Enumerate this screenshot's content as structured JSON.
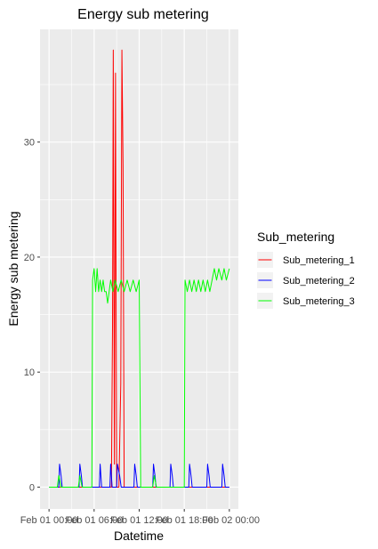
{
  "chart_data": {
    "type": "line",
    "title": "Energy sub metering",
    "xlabel": "Datetime",
    "ylabel": "Energy sub metering",
    "x_unit": "hours since Feb 01 00:00",
    "xlim": [
      -1.2,
      25.2
    ],
    "ylim": [
      -1.9,
      39.8
    ],
    "x_ticks": [
      0,
      6,
      12,
      18,
      24
    ],
    "x_tick_labels": [
      "Feb 01 00:00",
      "Feb 01 06:00",
      "Feb 01 12:00",
      "Feb 01 18:00",
      "Feb 02 00:00"
    ],
    "y_ticks": [
      0,
      10,
      20,
      30
    ],
    "y_tick_labels": [
      "0",
      "10",
      "20",
      "30"
    ],
    "grid": true,
    "legend": {
      "title": "Sub_metering",
      "position": "right"
    },
    "series": [
      {
        "name": "Sub_metering_1",
        "color": "#ff0000",
        "points": [
          [
            0,
            0
          ],
          [
            8.3,
            0
          ],
          [
            8.45,
            14
          ],
          [
            8.55,
            38
          ],
          [
            8.7,
            2
          ],
          [
            8.85,
            36
          ],
          [
            9.0,
            0
          ],
          [
            9.3,
            0
          ],
          [
            9.55,
            9
          ],
          [
            9.7,
            38
          ],
          [
            9.85,
            28
          ],
          [
            10.0,
            0
          ],
          [
            24,
            0
          ]
        ]
      },
      {
        "name": "Sub_metering_2",
        "color": "#0000ff",
        "points": [
          [
            0,
            0
          ],
          [
            1.3,
            0
          ],
          [
            1.4,
            2
          ],
          [
            1.6,
            1
          ],
          [
            1.75,
            0
          ],
          [
            4.0,
            0
          ],
          [
            4.1,
            2
          ],
          [
            4.3,
            1
          ],
          [
            4.45,
            0
          ],
          [
            6.7,
            0
          ],
          [
            6.8,
            2
          ],
          [
            7.0,
            0
          ],
          [
            8.1,
            0
          ],
          [
            8.2,
            2
          ],
          [
            8.4,
            0
          ],
          [
            9.0,
            0
          ],
          [
            9.1,
            2
          ],
          [
            9.4,
            1
          ],
          [
            9.6,
            0
          ],
          [
            11.3,
            0
          ],
          [
            11.4,
            2
          ],
          [
            11.6,
            1
          ],
          [
            11.75,
            0
          ],
          [
            13.8,
            0
          ],
          [
            13.9,
            2
          ],
          [
            14.1,
            1
          ],
          [
            14.25,
            0
          ],
          [
            16.1,
            0
          ],
          [
            16.2,
            2
          ],
          [
            16.4,
            1
          ],
          [
            16.55,
            0
          ],
          [
            18.6,
            0
          ],
          [
            18.7,
            2
          ],
          [
            18.9,
            1
          ],
          [
            19.05,
            0
          ],
          [
            21.0,
            0
          ],
          [
            21.1,
            2
          ],
          [
            21.3,
            1
          ],
          [
            21.45,
            0
          ],
          [
            23.0,
            0
          ],
          [
            23.1,
            2
          ],
          [
            23.3,
            1
          ],
          [
            23.45,
            0
          ],
          [
            24,
            0
          ]
        ]
      },
      {
        "name": "Sub_metering_3",
        "color": "#00ff00",
        "points": [
          [
            0,
            0
          ],
          [
            1.1,
            0
          ],
          [
            1.3,
            1
          ],
          [
            1.6,
            0
          ],
          [
            3.9,
            0
          ],
          [
            4.1,
            1
          ],
          [
            4.4,
            0
          ],
          [
            5.7,
            0
          ],
          [
            5.8,
            18
          ],
          [
            6.0,
            19
          ],
          [
            6.2,
            17
          ],
          [
            6.4,
            19
          ],
          [
            6.6,
            17
          ],
          [
            6.8,
            18
          ],
          [
            7.0,
            17
          ],
          [
            7.2,
            18
          ],
          [
            7.4,
            17
          ],
          [
            7.6,
            17
          ],
          [
            7.8,
            16
          ],
          [
            8.0,
            17
          ],
          [
            8.2,
            18
          ],
          [
            8.5,
            17
          ],
          [
            8.8,
            18
          ],
          [
            9.2,
            17
          ],
          [
            9.6,
            18
          ],
          [
            10.0,
            17
          ],
          [
            10.4,
            18
          ],
          [
            10.8,
            17
          ],
          [
            11.2,
            18
          ],
          [
            11.6,
            17
          ],
          [
            12.0,
            18
          ],
          [
            12.2,
            0
          ],
          [
            13.8,
            0
          ],
          [
            14.0,
            1
          ],
          [
            14.3,
            0
          ],
          [
            18.0,
            0
          ],
          [
            18.1,
            18
          ],
          [
            18.4,
            17
          ],
          [
            18.7,
            18
          ],
          [
            19.0,
            17
          ],
          [
            19.3,
            18
          ],
          [
            19.6,
            17
          ],
          [
            19.9,
            18
          ],
          [
            20.2,
            17
          ],
          [
            20.5,
            18
          ],
          [
            20.8,
            17
          ],
          [
            21.1,
            18
          ],
          [
            21.4,
            17
          ],
          [
            21.7,
            18
          ],
          [
            22.0,
            19
          ],
          [
            22.3,
            18
          ],
          [
            22.6,
            19
          ],
          [
            23.0,
            18
          ],
          [
            23.3,
            19
          ],
          [
            23.6,
            18
          ],
          [
            24.0,
            19
          ]
        ]
      }
    ]
  }
}
